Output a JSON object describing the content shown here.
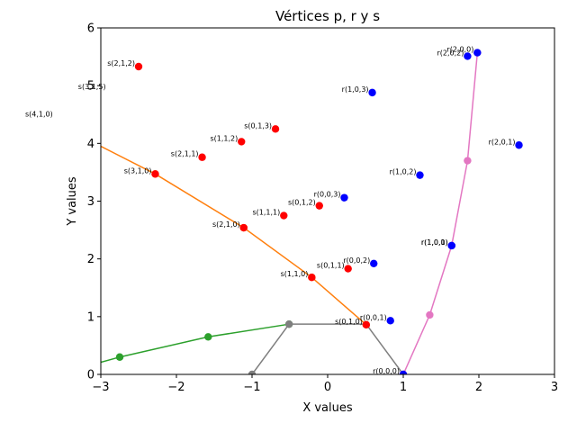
{
  "chart_data": {
    "type": "scatter",
    "title": "Vértices p, r y s",
    "xlabel": "X values",
    "ylabel": "Y values",
    "xlim": [
      -3,
      3
    ],
    "ylim": [
      0,
      6
    ],
    "xticks": [
      -3,
      -2,
      -1,
      0,
      1,
      2,
      3
    ],
    "yticks": [
      0,
      1,
      2,
      3,
      4,
      5,
      6
    ],
    "grid": false,
    "colors": {
      "s_points": "#ff0000",
      "r_points": "#0000ff",
      "orange_line": "#ff7f0e",
      "green_line": "#2ca02c",
      "gray_line": "#7f7f7f",
      "pink_line": "#e377c2"
    },
    "series": [
      {
        "kind": "points",
        "color": "#ff0000",
        "points": [
          {
            "label": "s(2,1,2)",
            "x": -2.5,
            "y": 5.33
          },
          {
            "label": "s(0,1,3)",
            "x": -0.69,
            "y": 4.25
          },
          {
            "label": "s(1,1,2)",
            "x": -1.14,
            "y": 4.03
          },
          {
            "label": "s(2,1,1)",
            "x": -1.66,
            "y": 3.76
          },
          {
            "label": "s(3,1,0)",
            "x": -2.28,
            "y": 3.47
          },
          {
            "label": "s(0,1,2)",
            "x": -0.11,
            "y": 2.92
          },
          {
            "label": "s(1,1,1)",
            "x": -0.58,
            "y": 2.75
          },
          {
            "label": "s(2,1,0)",
            "x": -1.11,
            "y": 2.54
          },
          {
            "label": "s(0,1,1)",
            "x": 0.27,
            "y": 1.83
          },
          {
            "label": "s(1,1,0)",
            "x": -0.21,
            "y": 1.68
          },
          {
            "label": "s(0,1,0)",
            "x": 0.51,
            "y": 0.86
          }
        ]
      },
      {
        "kind": "points",
        "color": "#0000ff",
        "points": [
          {
            "label": "r(2,0,0)",
            "x": 1.98,
            "y": 5.57
          },
          {
            "label": "r(2,0,2)",
            "x": 1.85,
            "y": 5.51
          },
          {
            "label": "r(1,0,3)",
            "x": 0.59,
            "y": 4.88
          },
          {
            "label": "r(2,0,1)",
            "x": 2.53,
            "y": 3.97
          },
          {
            "label": "r(1,0,2)",
            "x": 1.22,
            "y": 3.45
          },
          {
            "label": "r(0,0,3)",
            "x": 0.22,
            "y": 3.06
          },
          {
            "label": "r(1,0,0)",
            "x": 1.64,
            "y": 2.23
          },
          {
            "label": "r(1,0,1)",
            "x": 1.64,
            "y": 2.23
          },
          {
            "label": "r(0,0,2)",
            "x": 0.61,
            "y": 1.92
          },
          {
            "label": "r(0,0,1)",
            "x": 0.83,
            "y": 0.93
          },
          {
            "label": "r(0,0,0)",
            "x": 1.0,
            "y": 0.0
          }
        ]
      },
      {
        "kind": "line",
        "color": "#ff7f0e",
        "markers": true,
        "points": [
          {
            "x": -3.0,
            "y": 3.95,
            "marker": false
          },
          {
            "x": -2.28,
            "y": 3.47,
            "marker": true
          },
          {
            "x": -1.11,
            "y": 2.54,
            "marker": true
          },
          {
            "x": -0.21,
            "y": 1.68,
            "marker": true
          },
          {
            "x": 0.51,
            "y": 0.86,
            "marker": true
          }
        ]
      },
      {
        "kind": "line",
        "color": "#2ca02c",
        "markers": true,
        "points": [
          {
            "x": -3.0,
            "y": 0.21,
            "marker": false
          },
          {
            "x": -2.75,
            "y": 0.3,
            "marker": true
          },
          {
            "x": -1.58,
            "y": 0.65,
            "marker": true
          },
          {
            "x": -0.51,
            "y": 0.87,
            "marker": true
          }
        ]
      },
      {
        "kind": "line",
        "color": "#7f7f7f",
        "markers": true,
        "points": [
          {
            "x": -1.0,
            "y": 0.0,
            "marker": true
          },
          {
            "x": -0.51,
            "y": 0.87,
            "marker": true
          },
          {
            "x": 0.51,
            "y": 0.87,
            "marker": false
          },
          {
            "x": 1.0,
            "y": 0.0,
            "marker": true
          }
        ]
      },
      {
        "kind": "line",
        "color": "#e377c2",
        "markers": true,
        "points": [
          {
            "x": 1.0,
            "y": 0.0,
            "marker": true
          },
          {
            "x": 1.35,
            "y": 1.03,
            "marker": true
          },
          {
            "x": 1.64,
            "y": 2.23,
            "marker": true
          },
          {
            "x": 1.85,
            "y": 3.7,
            "marker": true
          },
          {
            "x": 1.98,
            "y": 5.57,
            "marker": true
          }
        ]
      }
    ],
    "outside_labels": [
      {
        "label": "s(3,1,5)",
        "x": -3.3,
        "y": 4.99
      },
      {
        "label": "s(4,1,0)",
        "x": -4.0,
        "y": 4.51
      }
    ]
  }
}
